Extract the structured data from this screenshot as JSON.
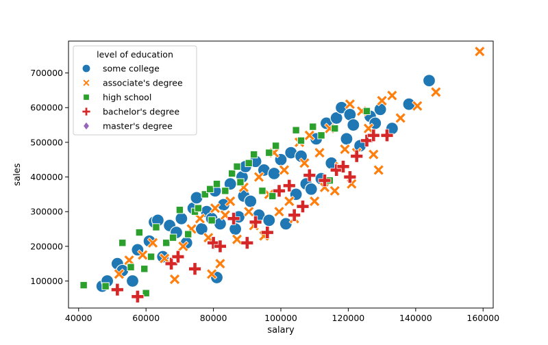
{
  "chart_data": {
    "type": "scatter",
    "title": "",
    "xlabel": "salary",
    "ylabel": "sales",
    "xlim": [
      37000,
      163000
    ],
    "ylim": [
      22000,
      792000
    ],
    "x_ticks": [
      40000,
      60000,
      80000,
      100000,
      120000,
      140000,
      160000
    ],
    "x_tick_labels": [
      "40000",
      "60000",
      "80000",
      "100000",
      "120000",
      "140000",
      "160000"
    ],
    "y_ticks": [
      100000,
      200000,
      300000,
      400000,
      500000,
      600000,
      700000
    ],
    "y_tick_labels": [
      "100000",
      "200000",
      "300000",
      "400000",
      "500000",
      "600000",
      "700000"
    ],
    "grid": false,
    "legend": {
      "title": "level of education",
      "placement": "top-left"
    },
    "series": [
      {
        "name": "some college",
        "color": "#1f77b4",
        "marker": "circle",
        "points": [
          [
            47000,
            85000
          ],
          [
            48500,
            100000
          ],
          [
            51500,
            150000
          ],
          [
            53000,
            130000
          ],
          [
            56000,
            100000
          ],
          [
            57500,
            190000
          ],
          [
            61000,
            215000
          ],
          [
            62500,
            270000
          ],
          [
            63500,
            275000
          ],
          [
            65000,
            170000
          ],
          [
            67000,
            260000
          ],
          [
            69000,
            240000
          ],
          [
            70500,
            280000
          ],
          [
            72000,
            210000
          ],
          [
            74000,
            310000
          ],
          [
            75000,
            340000
          ],
          [
            76500,
            250000
          ],
          [
            78000,
            300000
          ],
          [
            79500,
            280000
          ],
          [
            80500,
            360000
          ],
          [
            81000,
            110000
          ],
          [
            82000,
            265000
          ],
          [
            83000,
            320000
          ],
          [
            85000,
            380000
          ],
          [
            86500,
            250000
          ],
          [
            87500,
            285000
          ],
          [
            88500,
            400000
          ],
          [
            89000,
            345000
          ],
          [
            89500,
            430000
          ],
          [
            91000,
            330000
          ],
          [
            92500,
            445000
          ],
          [
            93500,
            290000
          ],
          [
            95000,
            420000
          ],
          [
            96500,
            275000
          ],
          [
            98000,
            410000
          ],
          [
            100000,
            450000
          ],
          [
            101500,
            265000
          ],
          [
            103000,
            470000
          ],
          [
            104500,
            350000
          ],
          [
            106000,
            460000
          ],
          [
            107500,
            380000
          ],
          [
            109000,
            365000
          ],
          [
            110500,
            510000
          ],
          [
            112000,
            395000
          ],
          [
            113500,
            555000
          ],
          [
            115000,
            440000
          ],
          [
            116500,
            570000
          ],
          [
            118000,
            600000
          ],
          [
            119500,
            510000
          ],
          [
            120500,
            580000
          ],
          [
            121500,
            550000
          ],
          [
            123500,
            490000
          ],
          [
            126500,
            575000
          ],
          [
            128000,
            555000
          ],
          [
            129500,
            595000
          ],
          [
            133000,
            540000
          ],
          [
            138000,
            610000
          ],
          [
            144000,
            678000
          ]
        ]
      },
      {
        "name": "associate's degree",
        "color": "#ff7f0e",
        "marker": "x",
        "points": [
          [
            52000,
            120000
          ],
          [
            55000,
            160000
          ],
          [
            59000,
            175000
          ],
          [
            62000,
            210000
          ],
          [
            65500,
            165000
          ],
          [
            68500,
            105000
          ],
          [
            71000,
            200000
          ],
          [
            73500,
            250000
          ],
          [
            76000,
            280000
          ],
          [
            78500,
            225000
          ],
          [
            79500,
            120000
          ],
          [
            80500,
            310000
          ],
          [
            82000,
            150000
          ],
          [
            83500,
            290000
          ],
          [
            85000,
            330000
          ],
          [
            87000,
            220000
          ],
          [
            89000,
            370000
          ],
          [
            90500,
            300000
          ],
          [
            92000,
            260000
          ],
          [
            93500,
            400000
          ],
          [
            95000,
            230000
          ],
          [
            96500,
            350000
          ],
          [
            98000,
            470000
          ],
          [
            99500,
            300000
          ],
          [
            101000,
            420000
          ],
          [
            102500,
            330000
          ],
          [
            104000,
            280000
          ],
          [
            105500,
            500000
          ],
          [
            107000,
            440000
          ],
          [
            108500,
            520000
          ],
          [
            110000,
            330000
          ],
          [
            111500,
            470000
          ],
          [
            113000,
            370000
          ],
          [
            114500,
            540000
          ],
          [
            116000,
            360000
          ],
          [
            117500,
            430000
          ],
          [
            119000,
            480000
          ],
          [
            120500,
            610000
          ],
          [
            121000,
            380000
          ],
          [
            122500,
            470000
          ],
          [
            124000,
            590000
          ],
          [
            126000,
            540000
          ],
          [
            127500,
            465000
          ],
          [
            129000,
            420000
          ],
          [
            130000,
            620000
          ],
          [
            133000,
            635000
          ],
          [
            135500,
            570000
          ],
          [
            140500,
            605000
          ],
          [
            146000,
            645000
          ],
          [
            159000,
            762000
          ]
        ]
      },
      {
        "name": "high school",
        "color": "#2ca02c",
        "marker": "square",
        "points": [
          [
            41500,
            88000
          ],
          [
            48000,
            85000
          ],
          [
            53000,
            210000
          ],
          [
            55500,
            140000
          ],
          [
            58000,
            240000
          ],
          [
            59500,
            135000
          ],
          [
            60000,
            65000
          ],
          [
            61500,
            170000
          ],
          [
            63000,
            255000
          ],
          [
            66000,
            210000
          ],
          [
            68000,
            225000
          ],
          [
            70000,
            305000
          ],
          [
            72500,
            235000
          ],
          [
            74500,
            300000
          ],
          [
            75500,
            310000
          ],
          [
            77500,
            350000
          ],
          [
            79000,
            365000
          ],
          [
            79500,
            275000
          ],
          [
            81000,
            380000
          ],
          [
            83500,
            360000
          ],
          [
            85500,
            410000
          ],
          [
            87000,
            430000
          ],
          [
            88000,
            385000
          ],
          [
            90500,
            440000
          ],
          [
            92000,
            465000
          ],
          [
            94500,
            360000
          ],
          [
            96500,
            470000
          ],
          [
            97500,
            345000
          ],
          [
            98500,
            490000
          ],
          [
            104500,
            535000
          ],
          [
            106000,
            505000
          ],
          [
            109500,
            545000
          ],
          [
            112000,
            520000
          ],
          [
            114500,
            390000
          ],
          [
            116000,
            540000
          ],
          [
            125500,
            590000
          ]
        ]
      },
      {
        "name": "bachelor's degree",
        "color": "#d62728",
        "marker": "plus",
        "points": [
          [
            51500,
            75000
          ],
          [
            57500,
            55000
          ],
          [
            67500,
            150000
          ],
          [
            69500,
            170000
          ],
          [
            74500,
            135000
          ],
          [
            80000,
            210000
          ],
          [
            82000,
            200000
          ],
          [
            86000,
            280000
          ],
          [
            90000,
            210000
          ],
          [
            92500,
            270000
          ],
          [
            96000,
            240000
          ],
          [
            99500,
            360000
          ],
          [
            102500,
            375000
          ],
          [
            104000,
            290000
          ],
          [
            106500,
            315000
          ],
          [
            108500,
            405000
          ],
          [
            113000,
            390000
          ],
          [
            116500,
            420000
          ],
          [
            118500,
            430000
          ],
          [
            120500,
            400000
          ],
          [
            122500,
            460000
          ],
          [
            125500,
            505000
          ],
          [
            127500,
            520000
          ],
          [
            131500,
            520000
          ]
        ]
      },
      {
        "name": "master's degree",
        "color": "#9467bd",
        "marker": "diamond",
        "points": []
      }
    ]
  }
}
